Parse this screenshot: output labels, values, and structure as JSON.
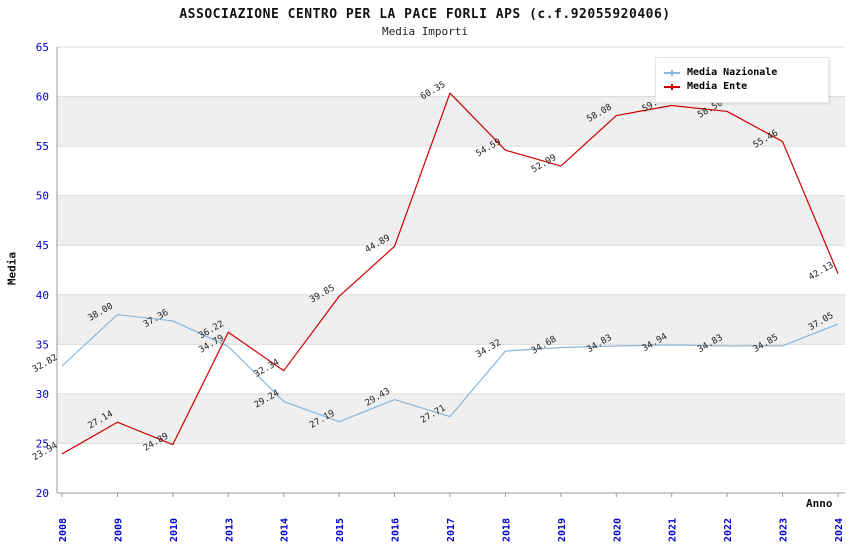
{
  "header": {
    "title": "ASSOCIAZIONE CENTRO PER LA PACE FORLI APS (c.f.92055920406)",
    "subtitle": "Media Importi"
  },
  "axes": {
    "y_label": "Media",
    "x_label": "Anno"
  },
  "legend": {
    "items": [
      {
        "label": "Media Nazionale",
        "color": "#8ab6d9"
      },
      {
        "label": "Media Ente",
        "color": "#cc0000"
      }
    ]
  },
  "chart_data": {
    "type": "line",
    "title": "ASSOCIAZIONE CENTRO PER LA PACE FORLI APS (c.f.92055920406)",
    "subtitle": "Media Importi",
    "xlabel": "Anno",
    "ylabel": "Media",
    "categories": [
      "2008",
      "2009",
      "2010",
      "2013",
      "2014",
      "2015",
      "2016",
      "2017",
      "2018",
      "2019",
      "2020",
      "2021",
      "2022",
      "2023",
      "2024"
    ],
    "series": [
      {
        "name": "Media Nazionale",
        "color": "#8ab6d9",
        "values": [
          32.82,
          38.0,
          37.36,
          34.79,
          29.24,
          27.19,
          29.43,
          27.71,
          34.32,
          34.68,
          34.83,
          34.94,
          34.83,
          34.85,
          37.05
        ],
        "labels": [
          "32.82",
          "38.00",
          "37.36",
          "34.79",
          "29.24",
          "27.19",
          "29.43",
          "27.71",
          "34.32",
          "34.68",
          "34.83",
          "34.94",
          "34.83",
          "34.85",
          "37.05"
        ]
      },
      {
        "name": "Media Ente",
        "color": "#cc0000",
        "values": [
          23.94,
          27.14,
          24.89,
          36.22,
          32.34,
          39.85,
          44.89,
          60.35,
          54.59,
          52.99,
          58.08,
          59.1,
          58.5,
          55.46,
          42.13
        ],
        "labels": [
          "23.94",
          "27.14",
          "24.89",
          "36.22",
          "32.34",
          "39.85",
          "44.89",
          "60.35",
          "54.59",
          "52.99",
          "58.08",
          "59.10",
          "58.50",
          "55.46",
          "42.13"
        ]
      }
    ],
    "ylim": [
      20,
      65
    ],
    "ytick_step": 5,
    "grid": true,
    "legend_position": "top-right",
    "band_ranges": [
      [
        25,
        30
      ],
      [
        35,
        40
      ],
      [
        45,
        50
      ],
      [
        55,
        60
      ]
    ],
    "colors": {
      "axis_text": "#0000cc",
      "band": "#efefef",
      "grid": "#dcdcdc",
      "axis_line": "#999999",
      "value_label": "#222222"
    }
  }
}
